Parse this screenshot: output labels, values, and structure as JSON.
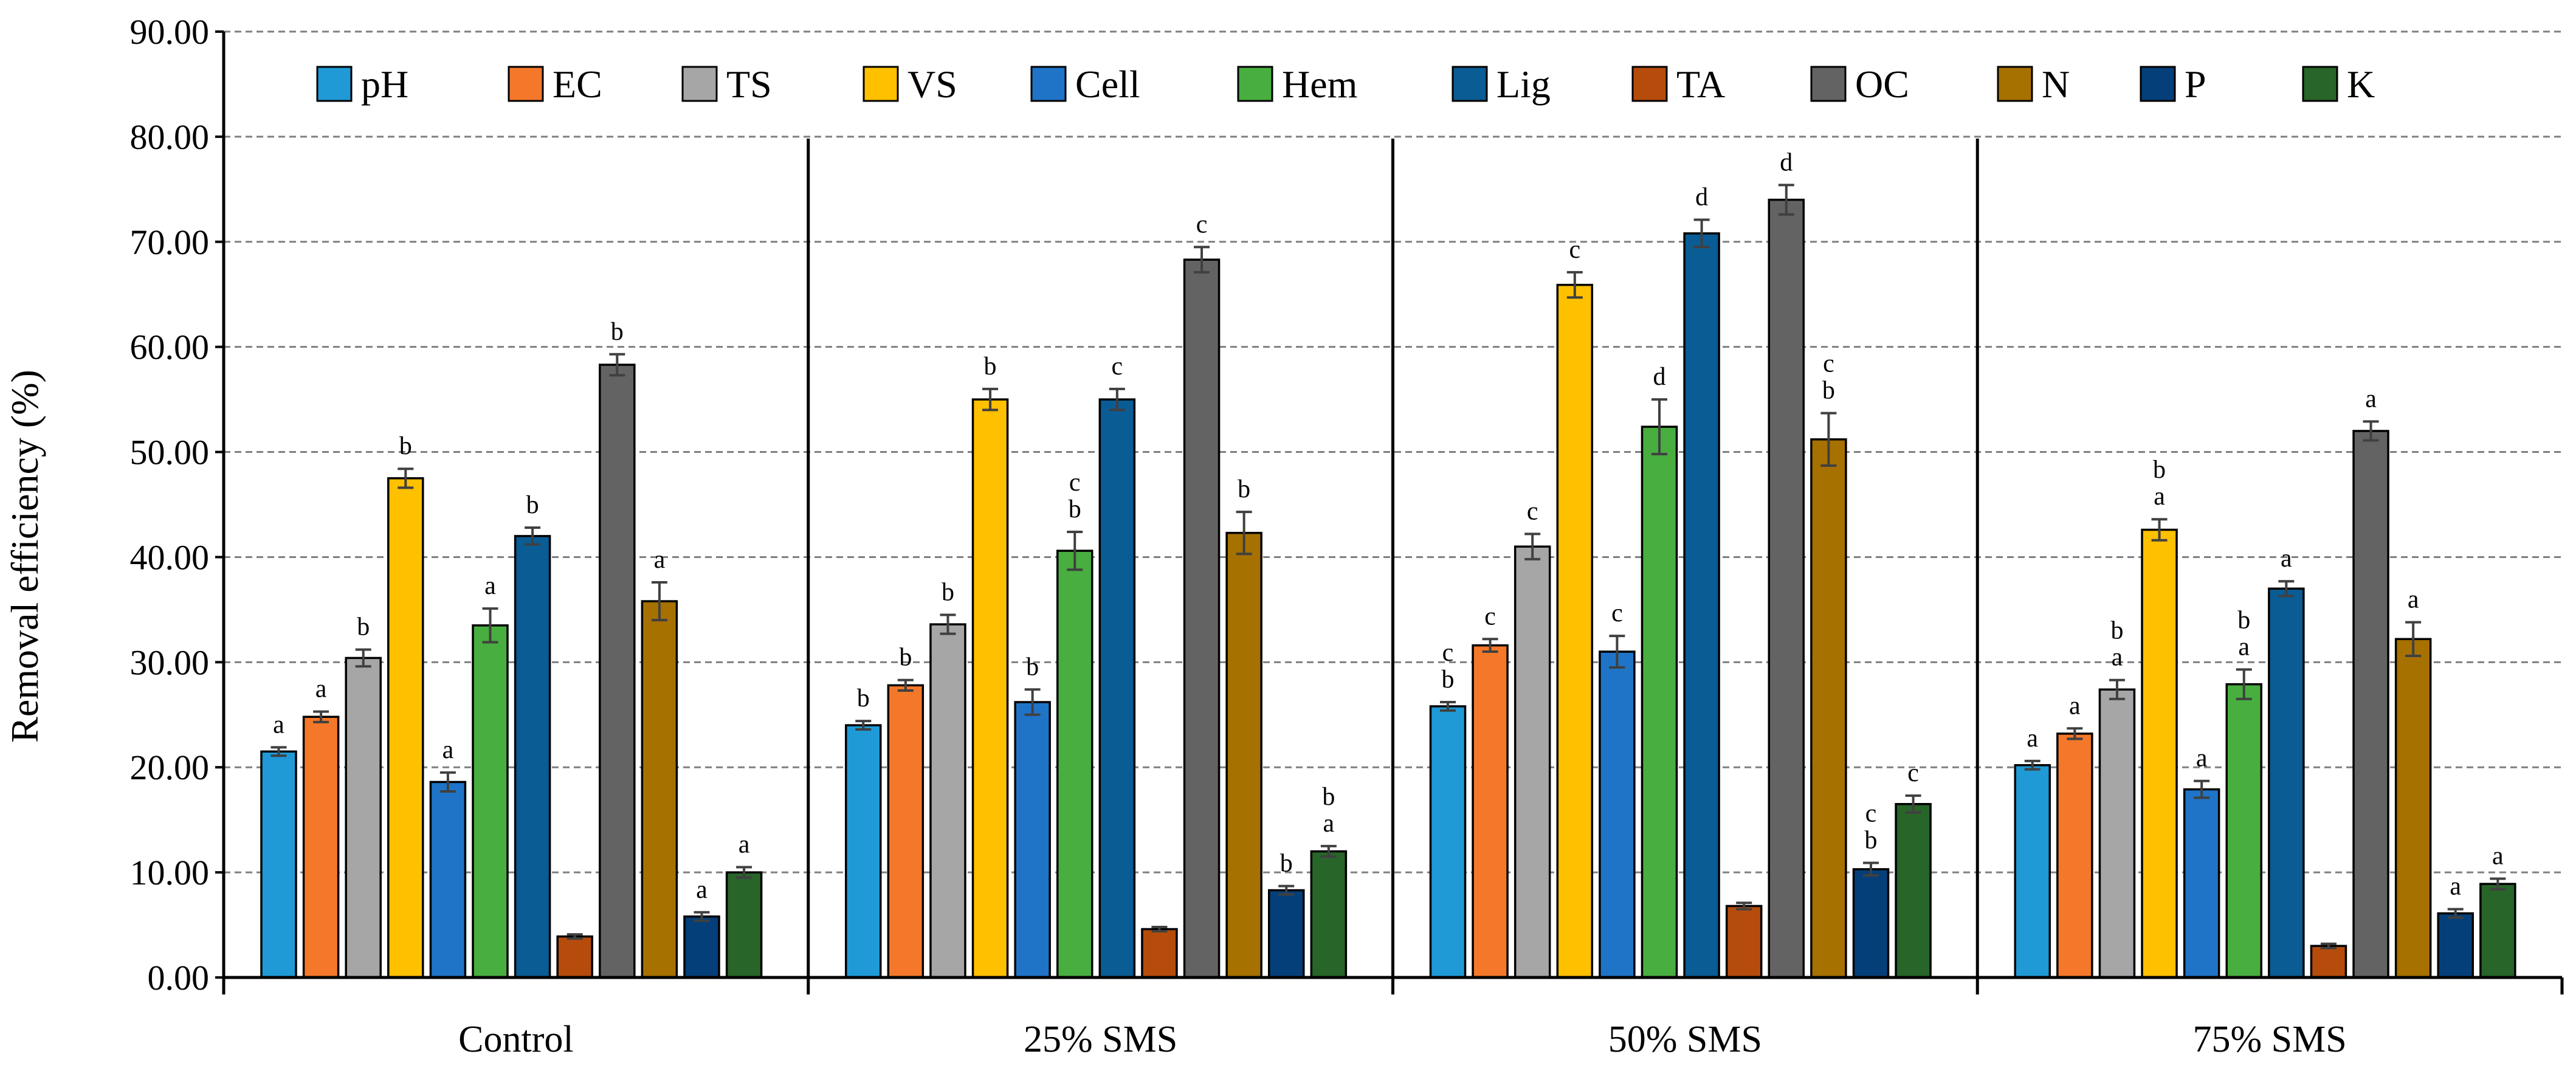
{
  "chart_data": {
    "type": "bar",
    "title": "",
    "xlabel": "",
    "ylabel": "Removal efficiency (%)",
    "ylim": [
      0,
      90
    ],
    "y_ticks": [
      "0.00",
      "10.00",
      "20.00",
      "30.00",
      "40.00",
      "50.00",
      "60.00",
      "70.00",
      "80.00",
      "90.00"
    ],
    "grid": true,
    "legend_position": "top",
    "categories": [
      "Control",
      "25% SMS",
      "50% SMS",
      "75% SMS"
    ],
    "series": [
      {
        "name": "pH",
        "color": "#1F9AD6",
        "values": [
          21.5,
          24.0,
          25.8,
          20.2
        ],
        "errors": [
          0.4,
          0.4,
          0.4,
          0.4
        ],
        "sig": [
          [
            "a"
          ],
          [
            "b"
          ],
          [
            "c",
            "b"
          ],
          [
            "a"
          ]
        ]
      },
      {
        "name": "EC",
        "color": "#F5782A",
        "values": [
          24.8,
          27.8,
          31.6,
          23.2
        ],
        "errors": [
          0.5,
          0.5,
          0.6,
          0.5
        ],
        "sig": [
          [
            "a"
          ],
          [
            "b"
          ],
          [
            "c"
          ],
          [
            "a"
          ]
        ]
      },
      {
        "name": "TS",
        "color": "#A6A6A6",
        "values": [
          30.4,
          33.6,
          41.0,
          27.4
        ],
        "errors": [
          0.8,
          0.9,
          1.2,
          0.9
        ],
        "sig": [
          [
            "b"
          ],
          [
            "b"
          ],
          [
            "c"
          ],
          [
            "b",
            "a"
          ]
        ]
      },
      {
        "name": "VS",
        "color": "#FFC000",
        "values": [
          47.5,
          55.0,
          65.9,
          42.6
        ],
        "errors": [
          0.9,
          1.0,
          1.2,
          1.0
        ],
        "sig": [
          [
            "b"
          ],
          [
            "b"
          ],
          [
            "c"
          ],
          [
            "b",
            "a"
          ]
        ]
      },
      {
        "name": "Cell",
        "color": "#1F74C8",
        "values": [
          18.6,
          26.2,
          31.0,
          17.9
        ],
        "errors": [
          0.9,
          1.2,
          1.5,
          0.8
        ],
        "sig": [
          [
            "a"
          ],
          [
            "b"
          ],
          [
            "c"
          ],
          [
            "a"
          ]
        ]
      },
      {
        "name": "Hem",
        "color": "#48AE3F",
        "values": [
          33.5,
          40.6,
          52.4,
          27.9
        ],
        "errors": [
          1.6,
          1.8,
          2.6,
          1.4
        ],
        "sig": [
          [
            "a"
          ],
          [
            "c",
            "b"
          ],
          [
            "d"
          ],
          [
            "b",
            "a"
          ]
        ]
      },
      {
        "name": "Lig",
        "color": "#0A5C94",
        "values": [
          42.0,
          55.0,
          70.8,
          37.0
        ],
        "errors": [
          0.8,
          1.0,
          1.3,
          0.7
        ],
        "sig": [
          [
            "b"
          ],
          [
            "c"
          ],
          [
            "d"
          ],
          [
            "a"
          ]
        ]
      },
      {
        "name": "TA",
        "color": "#B54C0C",
        "values": [
          3.9,
          4.6,
          6.8,
          3.0
        ],
        "errors": [
          0.2,
          0.2,
          0.3,
          0.2
        ],
        "sig": [
          [],
          [],
          [],
          []
        ]
      },
      {
        "name": "OC",
        "color": "#636363",
        "values": [
          58.3,
          68.3,
          74.0,
          52.0
        ],
        "errors": [
          1.0,
          1.2,
          1.4,
          0.9
        ],
        "sig": [
          [
            "b"
          ],
          [
            "c"
          ],
          [
            "d"
          ],
          [
            "a"
          ]
        ]
      },
      {
        "name": "N",
        "color": "#A77100",
        "values": [
          35.8,
          42.3,
          51.2,
          32.2
        ],
        "errors": [
          1.8,
          2.0,
          2.5,
          1.6
        ],
        "sig": [
          [
            "a"
          ],
          [
            "b"
          ],
          [
            "c",
            "b"
          ],
          [
            "a"
          ]
        ]
      },
      {
        "name": "P",
        "color": "#053F79",
        "values": [
          5.8,
          8.3,
          10.3,
          6.1
        ],
        "errors": [
          0.4,
          0.4,
          0.6,
          0.4
        ],
        "sig": [
          [
            "a"
          ],
          [
            "b"
          ],
          [
            "c",
            "b"
          ],
          [
            "a"
          ]
        ]
      },
      {
        "name": "K",
        "color": "#276529",
        "values": [
          10.0,
          12.0,
          16.5,
          8.9
        ],
        "errors": [
          0.5,
          0.5,
          0.8,
          0.5
        ],
        "sig": [
          [
            "a"
          ],
          [
            "b",
            "a"
          ],
          [
            "c"
          ],
          [
            "a"
          ]
        ]
      }
    ]
  }
}
